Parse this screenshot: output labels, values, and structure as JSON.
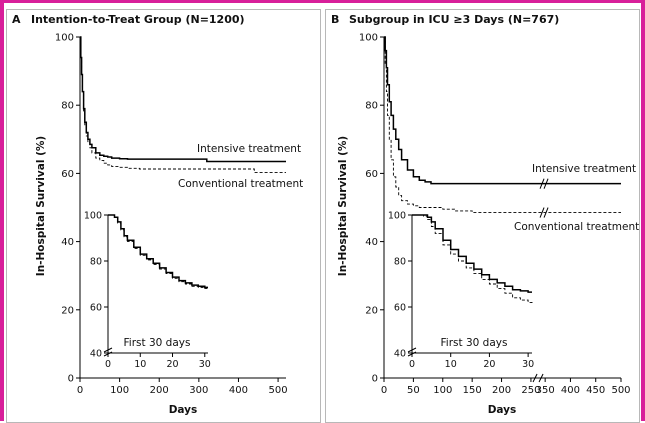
{
  "chart_data": [
    {
      "type": "line",
      "panel_letter": "A",
      "title": "Intention-to-Treat Group (N=1200)",
      "xlabel": "Days",
      "ylabel": "In-Hospital Survival (%)",
      "xlim": [
        0,
        520
      ],
      "ylim": [
        0,
        100
      ],
      "xticks": [
        0,
        100,
        200,
        300,
        400,
        500
      ],
      "yticks": [
        0,
        20,
        40,
        60,
        80,
        100
      ],
      "series": [
        {
          "name": "Intensive treatment",
          "x": [
            0,
            2,
            4,
            6,
            9,
            12,
            16,
            20,
            25,
            30,
            40,
            50,
            60,
            70,
            80,
            100,
            120,
            150,
            180,
            200,
            250,
            300,
            320,
            400,
            450,
            520
          ],
          "y": [
            100,
            94,
            89,
            84,
            79,
            75,
            72,
            70,
            68.5,
            67.5,
            66,
            65.3,
            65,
            64.8,
            64.5,
            64.3,
            64.2,
            64.2,
            64.2,
            64.2,
            64.2,
            64.2,
            63.5,
            63.5,
            63.5,
            63.5
          ]
        },
        {
          "name": "Conventional treatment",
          "x": [
            0,
            2,
            4,
            6,
            9,
            12,
            16,
            20,
            25,
            30,
            40,
            50,
            60,
            70,
            80,
            100,
            120,
            150,
            200,
            250,
            300,
            320,
            400,
            440,
            520
          ],
          "y": [
            100,
            94,
            89,
            84,
            78,
            74,
            71,
            69,
            67.5,
            66,
            64.5,
            63.8,
            63,
            62.5,
            62,
            61.8,
            61.5,
            61.3,
            61.3,
            61.3,
            61.3,
            61.3,
            61.3,
            60.3,
            60.3
          ]
        }
      ],
      "inset": {
        "xlabel": "First 30 days",
        "xlim": [
          0,
          31
        ],
        "ylim": [
          40,
          100
        ],
        "xticks": [
          0,
          10,
          20,
          30
        ],
        "yticks": [
          40,
          60,
          80,
          100
        ],
        "series": [
          {
            "name": "Intensive treatment",
            "x": [
              0,
              1,
              2,
              3,
              4,
              5,
              6,
              8,
              10,
              12,
              14,
              16,
              18,
              20,
              22,
              24,
              26,
              28,
              30,
              31
            ],
            "y": [
              100,
              100,
              99,
              97,
              94,
              91,
              89,
              86,
              83,
              81,
              79,
              77,
              75,
              73,
              71.5,
              70.5,
              69.5,
              69,
              68.5,
              68.5
            ]
          },
          {
            "name": "Conventional treatment",
            "x": [
              0,
              1,
              2,
              3,
              4,
              5,
              6,
              8,
              10,
              12,
              14,
              16,
              18,
              20,
              22,
              24,
              26,
              28,
              30,
              31
            ],
            "y": [
              100,
              100,
              99,
              96.5,
              93.5,
              90.5,
              88.5,
              85.5,
              82.5,
              80.5,
              78.5,
              76.5,
              74.5,
              72.5,
              71,
              70,
              69,
              68.5,
              68,
              68
            ]
          }
        ]
      }
    },
    {
      "type": "line",
      "panel_letter": "B",
      "title": "Subgroup in ICU ≥3 Days (N=767)",
      "xlabel": "Days",
      "ylabel": "In-Hospital Survival (%)",
      "xlim": [
        0,
        500
      ],
      "ylim": [
        0,
        100
      ],
      "xticks": [
        0,
        50,
        100,
        150,
        200,
        250,
        350,
        400,
        450,
        500
      ],
      "axis_break_between": [
        250,
        350
      ],
      "yticks": [
        0,
        20,
        40,
        60,
        80,
        100
      ],
      "series": [
        {
          "name": "Intensive treatment",
          "x": [
            0,
            2,
            4,
            6,
            9,
            12,
            16,
            20,
            25,
            30,
            40,
            50,
            60,
            70,
            80,
            100,
            120,
            150,
            200,
            250,
            300,
            400,
            450,
            500
          ],
          "y": [
            100,
            96,
            91,
            86,
            81,
            77,
            73,
            70,
            67,
            64,
            61,
            59,
            58,
            57.5,
            57,
            57,
            57,
            57,
            57,
            57,
            57,
            57,
            57,
            57
          ]
        },
        {
          "name": "Conventional treatment",
          "x": [
            0,
            2,
            4,
            6,
            9,
            12,
            16,
            20,
            25,
            30,
            40,
            50,
            60,
            70,
            80,
            100,
            120,
            150,
            200,
            250,
            400,
            450,
            500
          ],
          "y": [
            100,
            92,
            84,
            77,
            70,
            64,
            59,
            56,
            53.5,
            52,
            51,
            50.5,
            50,
            50,
            50,
            49.5,
            49,
            48.5,
            48.5,
            48.5,
            48.5,
            48.5,
            48.5
          ]
        }
      ],
      "inset": {
        "xlabel": "First 30 days",
        "xlim": [
          0,
          31
        ],
        "ylim": [
          40,
          100
        ],
        "xticks": [
          0,
          10,
          20,
          30
        ],
        "yticks": [
          40,
          60,
          80,
          100
        ],
        "series": [
          {
            "name": "Intensive treatment",
            "x": [
              0,
              1,
              2,
              3,
              4,
              5,
              6,
              8,
              10,
              12,
              14,
              16,
              18,
              20,
              22,
              24,
              26,
              28,
              30,
              31
            ],
            "y": [
              100,
              100,
              100,
              100,
              99,
              97,
              94,
              89,
              85,
              82,
              79,
              76.5,
              74,
              72,
              70.5,
              69,
              67.5,
              67,
              66.5,
              66.5
            ]
          },
          {
            "name": "Conventional treatment",
            "x": [
              0,
              1,
              2,
              3,
              4,
              5,
              6,
              8,
              10,
              12,
              14,
              16,
              18,
              20,
              22,
              24,
              26,
              28,
              30,
              31
            ],
            "y": [
              100,
              100,
              100,
              99.5,
              98,
              95,
              92,
              87,
              83,
              80,
              77,
              74.5,
              72,
              70,
              68,
              66,
              64,
              63,
              62,
              61
            ]
          }
        ]
      }
    }
  ]
}
